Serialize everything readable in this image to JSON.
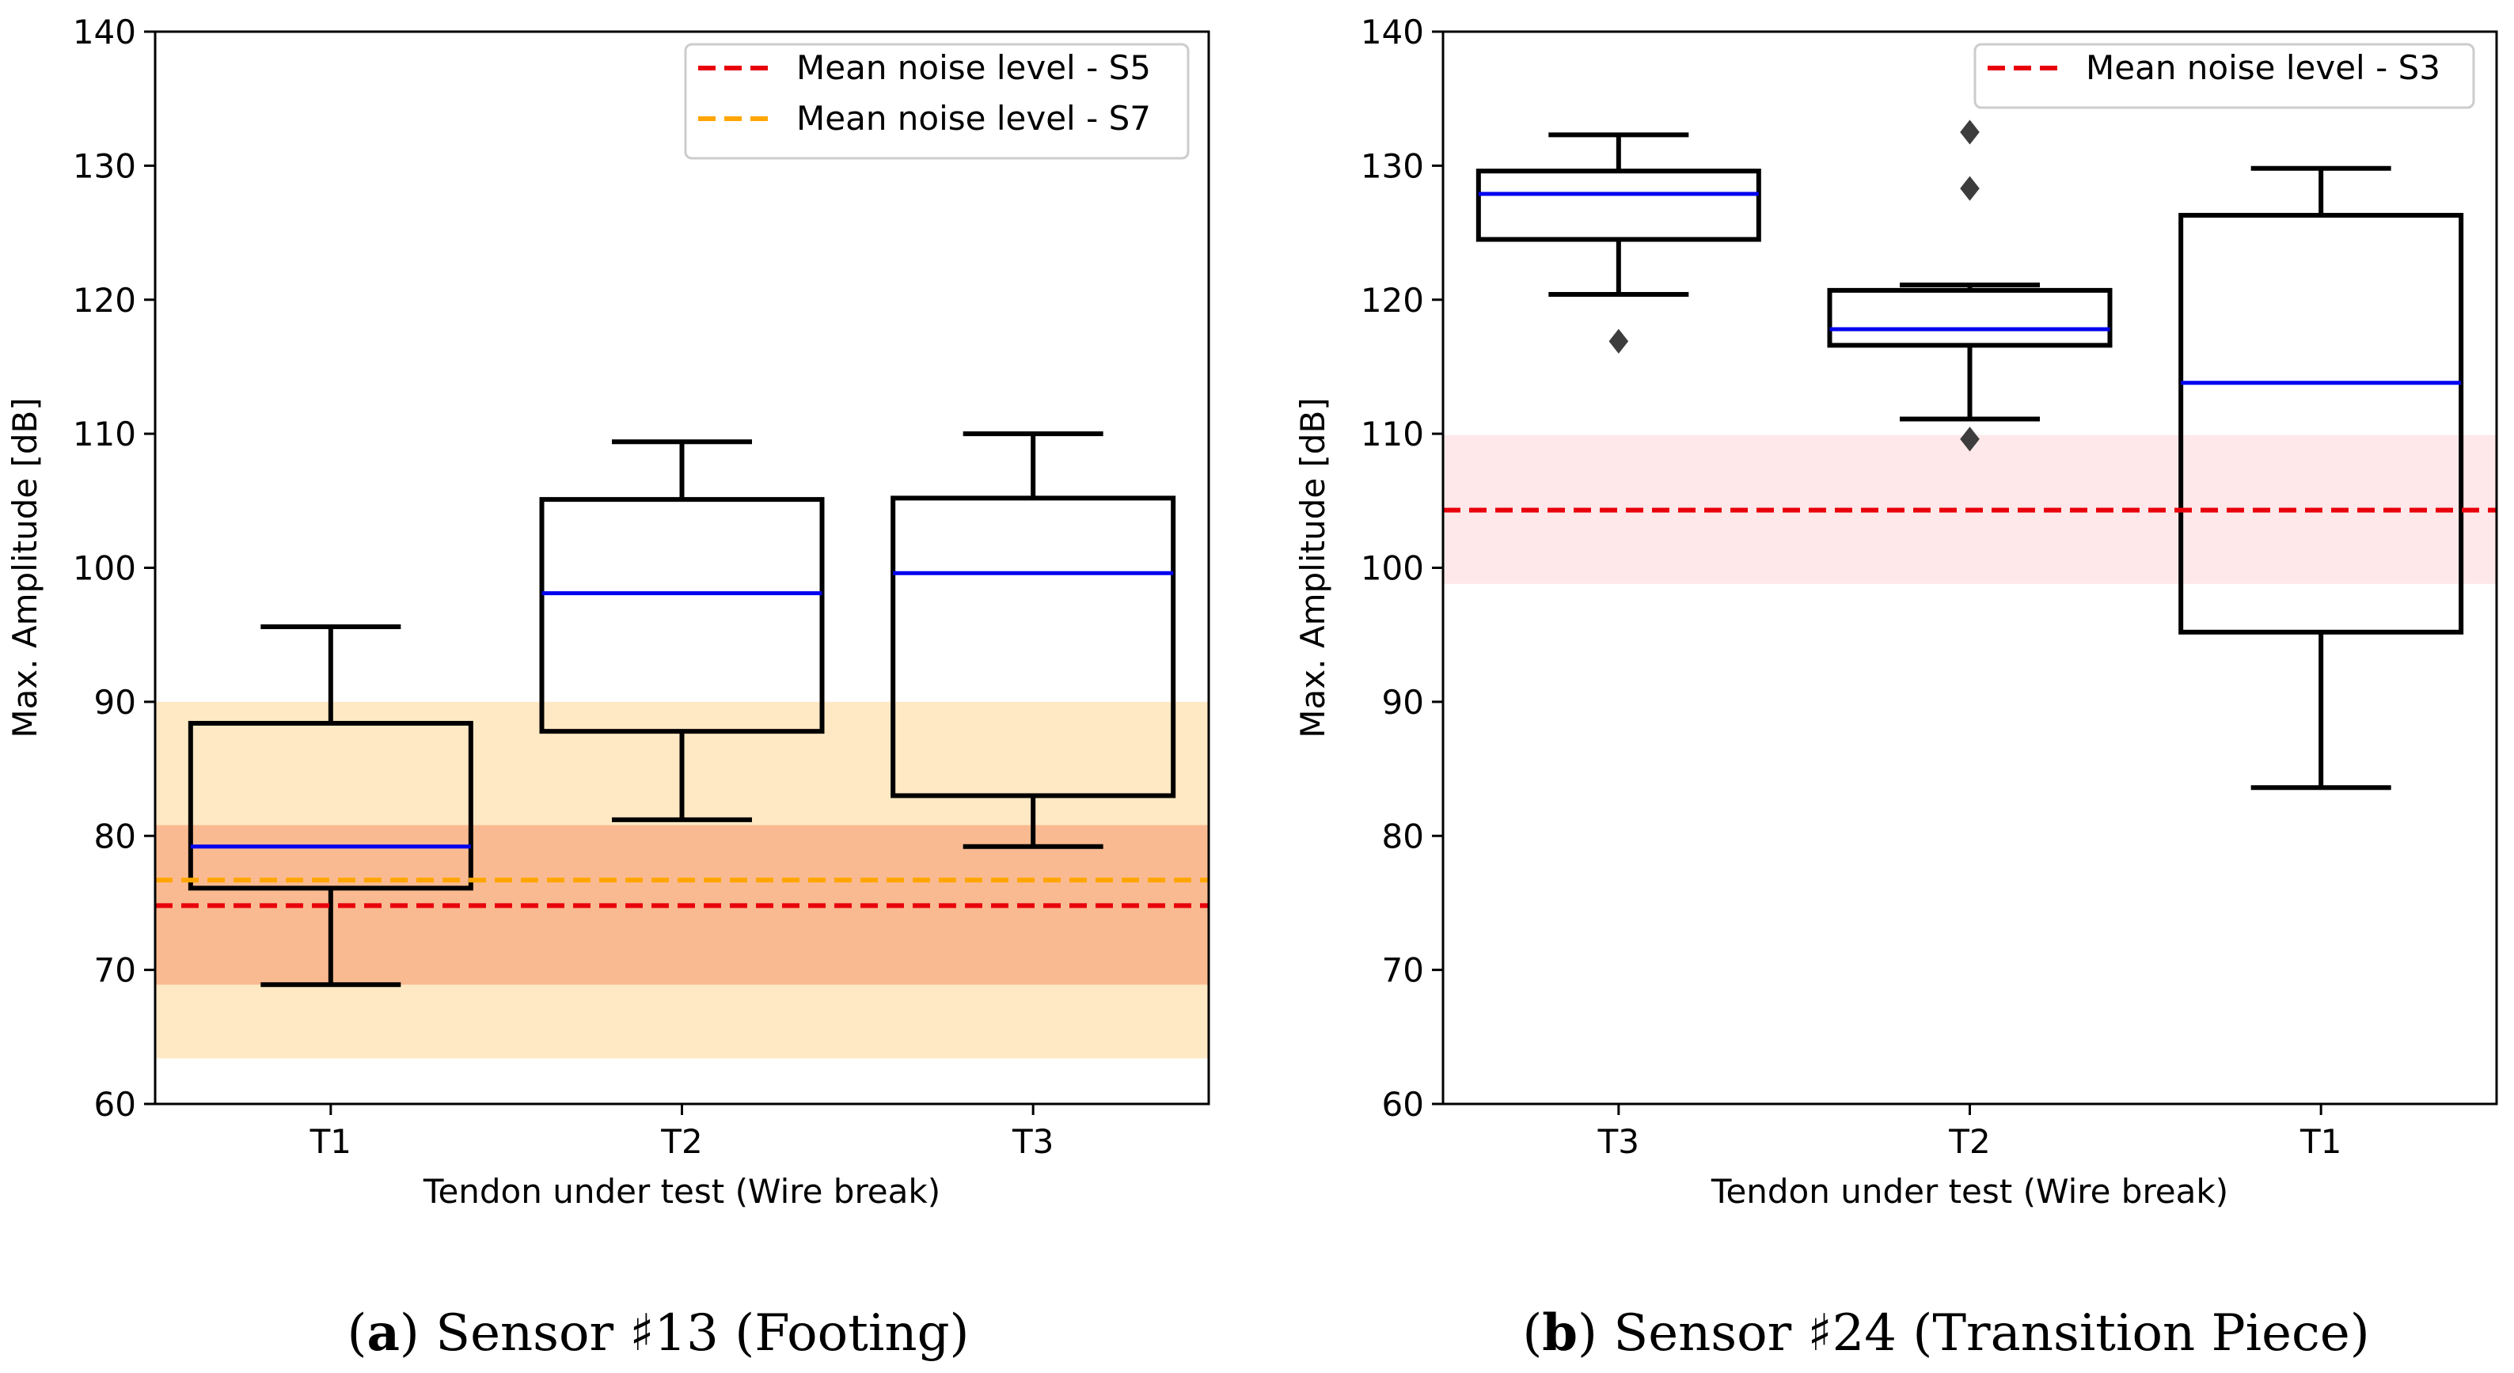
{
  "chart_data": [
    {
      "type": "box",
      "id": "a",
      "caption": {
        "label": "a",
        "text": "Sensor ♯13 (Footing)"
      },
      "title": "",
      "xlabel": "Tendon under test (Wire break)",
      "ylabel": "Max. Amplitude [dB]",
      "ylim": [
        60,
        140
      ],
      "yticks": [
        60,
        70,
        80,
        90,
        100,
        110,
        120,
        130,
        140
      ],
      "categories": [
        "T1",
        "T2",
        "T3"
      ],
      "boxes": [
        {
          "category": "T1",
          "whisker_low": 68.9,
          "q1": 76.1,
          "median": 79.2,
          "q3": 88.4,
          "whisker_high": 95.6,
          "fliers": []
        },
        {
          "category": "T2",
          "whisker_low": 81.2,
          "q1": 87.8,
          "median": 98.1,
          "q3": 105.1,
          "whisker_high": 109.4,
          "fliers": []
        },
        {
          "category": "T3",
          "whisker_low": 79.2,
          "q1": 83.0,
          "median": 99.6,
          "q3": 105.2,
          "whisker_high": 110.0,
          "fliers": []
        }
      ],
      "noise_lines": [
        {
          "name": "Mean noise level - S5",
          "value": 74.8,
          "color": "#e8000b",
          "band": [
            68.9,
            80.8
          ],
          "band_color": "#f7a07a"
        },
        {
          "name": "Mean noise level - S7",
          "value": 76.7,
          "color": "#ffa500",
          "band": [
            63.4,
            90.0
          ],
          "band_color": "#ffe2b0"
        }
      ],
      "median_color": "#0000ee",
      "legend_position": "top-right"
    },
    {
      "type": "box",
      "id": "b",
      "caption": {
        "label": "b",
        "text": "Sensor ♯24 (Transition Piece)"
      },
      "title": "",
      "xlabel": "Tendon under test (Wire break)",
      "ylabel": "Max. Amplitude [dB]",
      "ylim": [
        60,
        140
      ],
      "yticks": [
        60,
        70,
        80,
        90,
        100,
        110,
        120,
        130,
        140
      ],
      "categories": [
        "T3",
        "T2",
        "T1"
      ],
      "boxes": [
        {
          "category": "T3",
          "whisker_low": 120.4,
          "q1": 124.5,
          "median": 127.9,
          "q3": 129.6,
          "whisker_high": 132.3,
          "fliers": [
            116.9
          ]
        },
        {
          "category": "T2",
          "whisker_low": 111.1,
          "q1": 116.6,
          "median": 117.8,
          "q3": 120.7,
          "whisker_high": 121.1,
          "fliers": [
            109.6,
            128.3,
            132.5
          ]
        },
        {
          "category": "T1",
          "whisker_low": 83.6,
          "q1": 95.2,
          "median": 113.8,
          "q3": 126.3,
          "whisker_high": 129.8,
          "fliers": []
        }
      ],
      "noise_lines": [
        {
          "name": "Mean noise level - S3",
          "value": 104.3,
          "color": "#e8000b",
          "band": [
            98.8,
            109.9
          ],
          "band_color": "#fde0e2"
        }
      ],
      "median_color": "#0000ee",
      "legend_position": "top-right"
    }
  ]
}
